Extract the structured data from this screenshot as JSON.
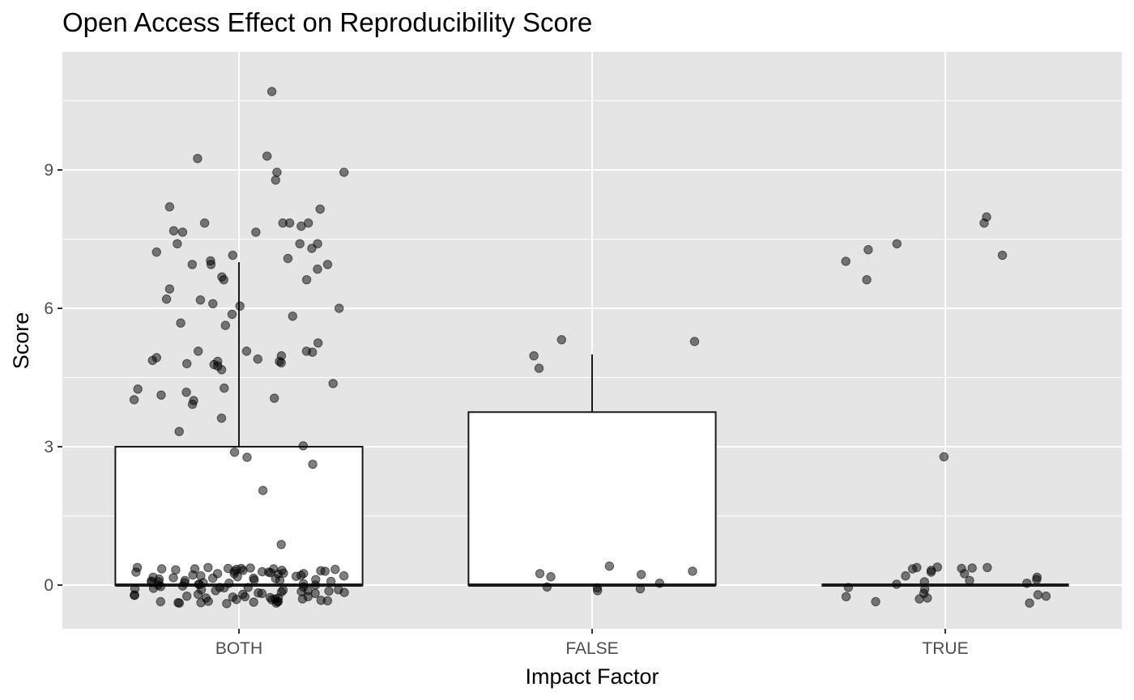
{
  "chart_data": {
    "type": "boxplot",
    "title": "Open Access Effect on Reproducibility Score",
    "xlabel": "Impact Factor",
    "ylabel": "Score",
    "categories": [
      "BOTH",
      "FALSE",
      "TRUE"
    ],
    "ylim": [
      -0.9,
      11.4
    ],
    "yticks": [
      0,
      3,
      6,
      9
    ],
    "grid": true,
    "legend": "none",
    "colors": {
      "panel": "#e5e5e5",
      "grid": "#ffffff",
      "box_fill": "#ffffff",
      "box_line": "#1a1a1a",
      "point": "#000000",
      "tick_text": "#4d4d4d"
    },
    "boxes": [
      {
        "category": "BOTH",
        "lower": 0,
        "q1": 0,
        "median": 0,
        "q3": 3.0,
        "upper": 7.0
      },
      {
        "category": "FALSE",
        "lower": 0,
        "q1": 0,
        "median": 0,
        "q3": 3.75,
        "upper": 5.0
      },
      {
        "category": "TRUE",
        "lower": 0,
        "q1": 0,
        "median": 0,
        "q3": 0,
        "upper": 0
      }
    ],
    "points": {
      "BOTH": [
        10.7,
        9.25,
        9.3,
        8.95,
        8.95,
        8.78,
        8.2,
        8.15,
        7.85,
        7.85,
        7.85,
        7.85,
        7.78,
        7.68,
        7.65,
        7.65,
        7.4,
        7.4,
        7.4,
        7.3,
        7.22,
        7.15,
        7.08,
        7.03,
        6.95,
        6.95,
        6.95,
        6.85,
        6.68,
        6.62,
        6.62,
        6.42,
        6.2,
        6.18,
        6.1,
        6.05,
        6.0,
        5.87,
        5.83,
        5.68,
        5.63,
        5.25,
        5.07,
        5.07,
        5.07,
        5.05,
        4.97,
        4.93,
        4.9,
        4.87,
        4.85,
        4.85,
        4.82,
        4.8,
        4.78,
        4.75,
        4.67,
        4.37,
        4.27,
        4.25,
        4.18,
        4.12,
        4.05,
        4.02,
        4.0,
        3.92,
        3.62,
        3.33,
        3.02,
        2.88,
        2.77,
        2.62,
        2.05,
        0.88,
        0.38,
        0.37,
        0.36,
        0.36,
        0.35,
        0.35,
        0.34,
        0.34,
        0.33,
        0.32,
        0.3,
        0.29,
        0.28,
        0.28,
        0.27,
        0.25,
        0.25,
        0.24,
        0.22,
        0.21,
        0.2,
        0.18,
        0.16,
        0.15,
        0.14,
        0.12,
        0.11,
        0.1,
        0.09,
        0.08,
        0.06,
        0.05,
        0.04,
        0.03,
        0.02,
        0.0,
        -0.02,
        -0.04,
        -0.05,
        -0.06,
        -0.08,
        -0.1,
        -0.11,
        -0.12,
        -0.14,
        -0.16,
        -0.17,
        -0.18,
        -0.2,
        -0.22,
        -0.24,
        -0.25,
        -0.27,
        -0.28,
        -0.3,
        -0.31,
        -0.32,
        -0.34,
        -0.35,
        -0.36,
        -0.37,
        -0.38,
        -0.39,
        -0.4,
        -0.38,
        -0.36,
        -0.35,
        0.15,
        0.1,
        0.05,
        0.0,
        -0.05,
        -0.1,
        -0.15,
        -0.2,
        -0.25,
        -0.3,
        0.2,
        0.25,
        0.3,
        0.35,
        -0.33,
        -0.28,
        -0.22,
        -0.18,
        -0.12,
        -0.07,
        -0.03,
        0.07,
        0.13,
        0.19,
        0.26,
        0.32,
        0.38,
        -0.39,
        -0.26,
        -0.13,
        0.01,
        0.17,
        0.31
      ],
      "FALSE": [
        5.32,
        5.28,
        4.97,
        4.7,
        0.41,
        0.3,
        0.25,
        0.23,
        0.18,
        0.04,
        -0.04,
        -0.06,
        -0.08,
        -0.12
      ],
      "TRUE": [
        7.98,
        7.85,
        7.4,
        7.27,
        7.15,
        7.02,
        6.62,
        2.78,
        0.39,
        0.38,
        0.38,
        0.37,
        0.36,
        0.35,
        0.32,
        0.28,
        0.25,
        0.2,
        0.17,
        0.12,
        0.1,
        0.07,
        0.04,
        0.02,
        -0.05,
        -0.09,
        -0.18,
        -0.21,
        -0.24,
        -0.25,
        -0.28,
        -0.3,
        -0.36,
        -0.39
      ]
    }
  }
}
